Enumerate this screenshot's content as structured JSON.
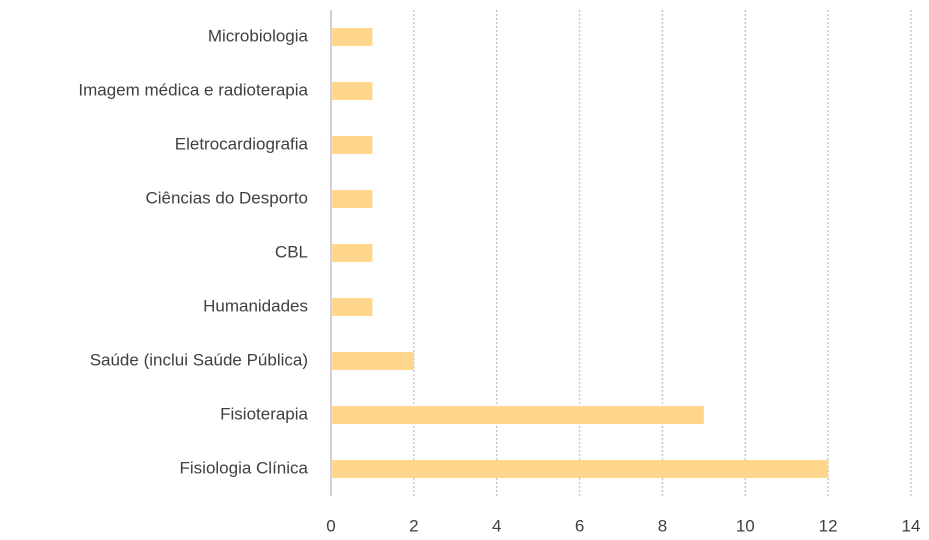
{
  "chart_data": {
    "type": "barh",
    "categories": [
      "Microbiologia",
      "Imagem médica e radioterapia",
      "Eletrocardiografia",
      "Ciências do Desporto",
      "CBL",
      "Humanidades",
      "Saúde (inclui Saúde Pública)",
      "Fisioterapia",
      "Fisiologia Clínica"
    ],
    "values": [
      1,
      1,
      1,
      1,
      1,
      1,
      2,
      9,
      12
    ],
    "color": "#ffd68c",
    "xlim": [
      0,
      14
    ],
    "xticks": [
      0,
      2,
      4,
      6,
      8,
      10,
      12,
      14
    ],
    "grid": true
  }
}
